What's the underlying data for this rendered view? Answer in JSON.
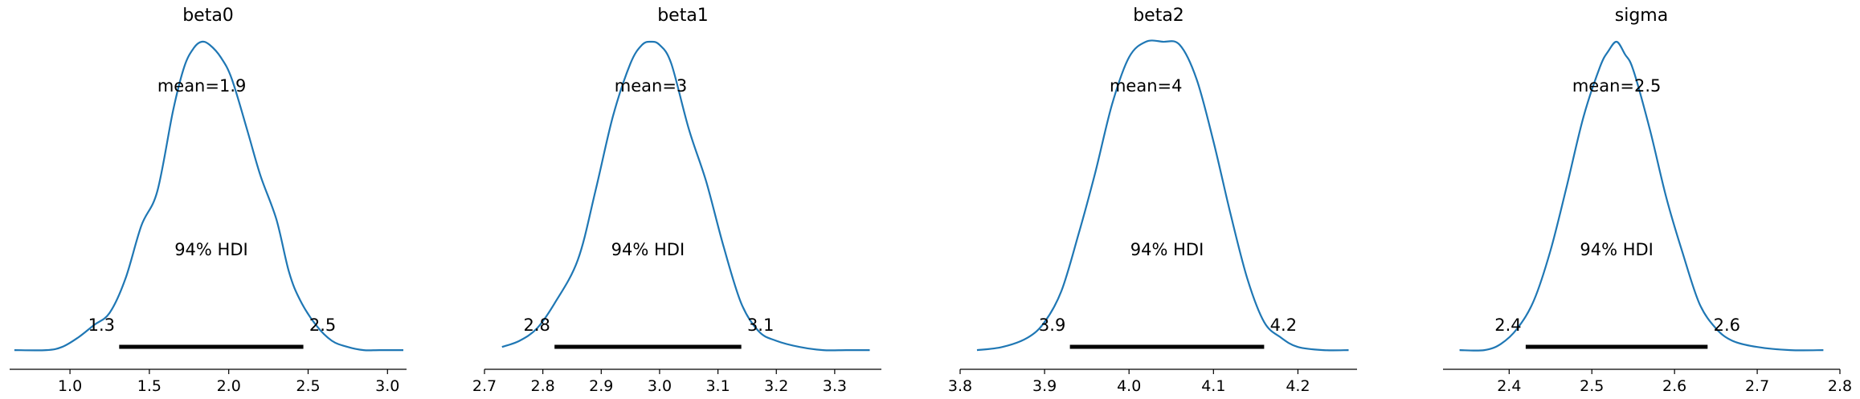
{
  "chart_data": [
    {
      "type": "area",
      "title": "beta0",
      "xlim": [
        0.62,
        3.12
      ],
      "xticks": [
        1.0,
        1.5,
        2.0,
        2.5,
        3.0
      ],
      "xtick_labels": [
        "1.0",
        "1.5",
        "2.0",
        "2.5",
        "3.0"
      ],
      "density": {
        "x": [
          0.65,
          0.85,
          0.95,
          1.05,
          1.15,
          1.25,
          1.35,
          1.45,
          1.55,
          1.65,
          1.72,
          1.78,
          1.83,
          1.88,
          1.95,
          2.02,
          2.12,
          2.2,
          2.3,
          2.38,
          2.45,
          2.55,
          2.65,
          2.75,
          2.85,
          2.95,
          3.1
        ],
        "y": [
          0.01,
          0.01,
          0.02,
          0.05,
          0.09,
          0.13,
          0.24,
          0.41,
          0.52,
          0.78,
          0.92,
          0.98,
          1.0,
          0.99,
          0.95,
          0.88,
          0.71,
          0.57,
          0.43,
          0.26,
          0.17,
          0.09,
          0.04,
          0.02,
          0.01,
          0.01,
          0.01
        ]
      },
      "mean_label": "mean=1.9",
      "hdi_label": "94% HDI",
      "hdi": [
        1.31,
        2.47
      ],
      "hdi_low_label": "1.3",
      "hdi_high_label": "2.5"
    },
    {
      "type": "area",
      "title": "beta1",
      "xlim": [
        2.7,
        3.38
      ],
      "xticks": [
        2.7,
        2.8,
        2.9,
        3.0,
        3.1,
        3.2,
        3.3
      ],
      "xtick_labels": [
        "2.7",
        "2.8",
        "2.9",
        "3.0",
        "3.1",
        "3.2",
        "3.3"
      ],
      "density": {
        "x": [
          2.73,
          2.76,
          2.79,
          2.82,
          2.86,
          2.89,
          2.92,
          2.95,
          2.97,
          2.985,
          3.0,
          3.02,
          3.05,
          3.08,
          3.11,
          3.14,
          3.17,
          3.2,
          3.24,
          3.28,
          3.32,
          3.36
        ],
        "y": [
          0.02,
          0.04,
          0.08,
          0.16,
          0.3,
          0.52,
          0.76,
          0.93,
          0.99,
          1.0,
          0.99,
          0.93,
          0.72,
          0.55,
          0.34,
          0.16,
          0.07,
          0.04,
          0.02,
          0.01,
          0.01,
          0.01
        ]
      },
      "mean_label": "mean=3",
      "hdi_label": "94% HDI",
      "hdi": [
        2.82,
        3.14
      ],
      "hdi_low_label": "2.8",
      "hdi_high_label": "3.1"
    },
    {
      "type": "area",
      "title": "beta2",
      "xlim": [
        3.8,
        4.27
      ],
      "xticks": [
        3.8,
        3.9,
        4.0,
        4.1,
        4.2
      ],
      "xtick_labels": [
        "3.8",
        "3.9",
        "4.0",
        "4.1",
        "4.2"
      ],
      "density": {
        "x": [
          3.82,
          3.85,
          3.88,
          3.9,
          3.92,
          3.94,
          3.96,
          3.98,
          4.0,
          4.02,
          4.04,
          4.06,
          4.08,
          4.1,
          4.12,
          4.14,
          4.16,
          4.18,
          4.2,
          4.23,
          4.26
        ],
        "y": [
          0.01,
          0.02,
          0.05,
          0.1,
          0.2,
          0.38,
          0.58,
          0.8,
          0.95,
          1.0,
          1.0,
          0.99,
          0.88,
          0.68,
          0.45,
          0.24,
          0.1,
          0.05,
          0.02,
          0.01,
          0.01
        ]
      },
      "mean_label": "mean=4",
      "hdi_label": "94% HDI",
      "hdi": [
        3.93,
        4.16
      ],
      "hdi_low_label": "3.9",
      "hdi_high_label": "4.2"
    },
    {
      "type": "area",
      "title": "sigma",
      "xlim": [
        2.32,
        2.8
      ],
      "xticks": [
        2.4,
        2.5,
        2.6,
        2.7,
        2.8
      ],
      "xtick_labels": [
        "2.4",
        "2.5",
        "2.6",
        "2.7",
        "2.8"
      ],
      "density": {
        "x": [
          2.34,
          2.37,
          2.39,
          2.41,
          2.43,
          2.45,
          2.47,
          2.49,
          2.51,
          2.52,
          2.53,
          2.54,
          2.55,
          2.57,
          2.59,
          2.61,
          2.63,
          2.65,
          2.67,
          2.7,
          2.74,
          2.78
        ],
        "y": [
          0.01,
          0.01,
          0.03,
          0.08,
          0.17,
          0.33,
          0.54,
          0.76,
          0.92,
          0.97,
          1.0,
          0.96,
          0.91,
          0.72,
          0.5,
          0.32,
          0.16,
          0.08,
          0.04,
          0.02,
          0.01,
          0.01
        ]
      },
      "mean_label": "mean=2.5",
      "hdi_label": "94% HDI",
      "hdi": [
        2.42,
        2.64
      ],
      "hdi_low_label": "2.4",
      "hdi_high_label": "2.6"
    }
  ],
  "colors": {
    "density_line": "#1f77b4",
    "hdi_bar": "#000000",
    "axis": "#000000"
  }
}
